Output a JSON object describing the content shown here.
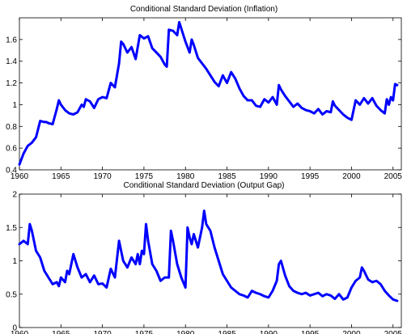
{
  "chart_data": [
    {
      "type": "line",
      "title": "Conditional Standard Deviation (Inflation)",
      "xlabel": "",
      "ylabel": "",
      "xlim": [
        1960,
        2006
      ],
      "ylim": [
        0.4,
        1.8
      ],
      "xticks": [
        1960,
        1965,
        1970,
        1975,
        1980,
        1985,
        1990,
        1995,
        2000,
        2005
      ],
      "yticks": [
        0.4,
        0.6,
        0.8,
        1,
        1.2,
        1.4,
        1.6
      ],
      "ytick_labels": [
        "0.4",
        "0.6",
        "0.8",
        "1",
        "1.2",
        "1.4",
        "1.6"
      ],
      "grid": false,
      "series": [
        {
          "color": "#0000ff",
          "x": [
            1960.0,
            1960.5,
            1961.0,
            1961.5,
            1962.0,
            1962.5,
            1963.0,
            1963.25,
            1963.5,
            1964.0,
            1964.5,
            1964.75,
            1965.0,
            1965.5,
            1966.0,
            1966.5,
            1967.0,
            1967.5,
            1967.75,
            1968.0,
            1968.5,
            1969.0,
            1969.5,
            1970.0,
            1970.5,
            1971.0,
            1971.5,
            1972.0,
            1972.25,
            1972.5,
            1973.0,
            1973.5,
            1974.0,
            1974.5,
            1975.0,
            1975.5,
            1976.0,
            1976.5,
            1977.0,
            1977.5,
            1977.75,
            1978.0,
            1978.5,
            1979.0,
            1979.25,
            1979.5,
            1980.0,
            1980.5,
            1980.75,
            1981.0,
            1981.5,
            1982.0,
            1982.5,
            1983.0,
            1983.5,
            1984.0,
            1984.5,
            1985.0,
            1985.5,
            1986.0,
            1986.5,
            1987.0,
            1987.5,
            1988.0,
            1988.5,
            1989.0,
            1989.5,
            1990.0,
            1990.5,
            1991.0,
            1991.25,
            1991.5,
            1992.0,
            1992.5,
            1993.0,
            1993.5,
            1994.0,
            1994.5,
            1995.0,
            1995.5,
            1996.0,
            1996.5,
            1997.0,
            1997.5,
            1997.75,
            1998.0,
            1998.5,
            1999.0,
            1999.5,
            2000.0,
            2000.5,
            2001.0,
            2001.5,
            2002.0,
            2002.5,
            2003.0,
            2003.5,
            2004.0,
            2004.25,
            2004.5,
            2004.75,
            2005.0,
            2005.25,
            2005.5
          ],
          "values": [
            0.45,
            0.55,
            0.62,
            0.65,
            0.7,
            0.85,
            0.84,
            0.84,
            0.83,
            0.82,
            0.96,
            1.04,
            1.0,
            0.95,
            0.92,
            0.91,
            0.93,
            1.0,
            0.98,
            1.05,
            1.03,
            0.97,
            1.05,
            1.07,
            1.06,
            1.2,
            1.16,
            1.38,
            1.58,
            1.56,
            1.48,
            1.53,
            1.42,
            1.64,
            1.61,
            1.63,
            1.52,
            1.48,
            1.44,
            1.37,
            1.35,
            1.69,
            1.68,
            1.64,
            1.76,
            1.7,
            1.58,
            1.48,
            1.6,
            1.55,
            1.43,
            1.38,
            1.33,
            1.27,
            1.21,
            1.17,
            1.27,
            1.2,
            1.3,
            1.24,
            1.15,
            1.08,
            1.04,
            1.04,
            0.99,
            0.98,
            1.05,
            1.02,
            1.07,
            1.0,
            1.18,
            1.14,
            1.08,
            1.03,
            0.98,
            1.01,
            0.97,
            0.95,
            0.94,
            0.92,
            0.96,
            0.91,
            0.94,
            0.93,
            1.03,
            0.99,
            0.95,
            0.91,
            0.88,
            0.86,
            1.04,
            1.0,
            1.06,
            1.01,
            1.06,
            0.99,
            0.95,
            0.92,
            1.05,
            1.0,
            1.07,
            1.04,
            1.19,
            1.18
          ]
        }
      ]
    },
    {
      "type": "line",
      "title": "Conditional Standard Deviation (Output Gap)",
      "xlabel": "",
      "ylabel": "",
      "xlim": [
        1960,
        2006
      ],
      "ylim": [
        0,
        2
      ],
      "xticks": [
        1960,
        1965,
        1970,
        1975,
        1980,
        1985,
        1990,
        1995,
        2000,
        2005
      ],
      "yticks": [
        0,
        0.5,
        1,
        1.5,
        2
      ],
      "ytick_labels": [
        "0",
        "0.5",
        "1",
        "1.5",
        "2"
      ],
      "grid": false,
      "series": [
        {
          "color": "#0000ff",
          "x": [
            1960.0,
            1960.5,
            1961.0,
            1961.25,
            1961.5,
            1962.0,
            1962.5,
            1963.0,
            1963.5,
            1963.75,
            1964.0,
            1964.5,
            1964.75,
            1965.0,
            1965.5,
            1965.75,
            1966.0,
            1966.5,
            1967.0,
            1967.5,
            1968.0,
            1968.5,
            1969.0,
            1969.5,
            1970.0,
            1970.5,
            1971.0,
            1971.5,
            1972.0,
            1972.5,
            1973.0,
            1973.5,
            1974.0,
            1974.25,
            1974.5,
            1974.75,
            1975.0,
            1975.25,
            1975.5,
            1976.0,
            1976.5,
            1977.0,
            1977.5,
            1978.0,
            1978.25,
            1978.5,
            1979.0,
            1979.5,
            1980.0,
            1980.25,
            1980.5,
            1980.75,
            1981.0,
            1981.5,
            1982.0,
            1982.25,
            1982.5,
            1983.0,
            1983.5,
            1984.0,
            1984.5,
            1985.0,
            1985.5,
            1986.0,
            1986.5,
            1987.0,
            1987.5,
            1988.0,
            1988.5,
            1989.0,
            1989.5,
            1990.0,
            1990.5,
            1991.0,
            1991.25,
            1991.5,
            1992.0,
            1992.5,
            1993.0,
            1993.5,
            1994.0,
            1994.5,
            1995.0,
            1995.5,
            1996.0,
            1996.5,
            1997.0,
            1997.5,
            1998.0,
            1998.5,
            1999.0,
            1999.5,
            2000.0,
            2000.5,
            2001.0,
            2001.25,
            2001.5,
            2002.0,
            2002.5,
            2003.0,
            2003.5,
            2004.0,
            2004.5,
            2005.0,
            2005.5
          ],
          "values": [
            1.25,
            1.3,
            1.25,
            1.55,
            1.45,
            1.15,
            1.05,
            0.85,
            0.75,
            0.7,
            0.65,
            0.68,
            0.62,
            0.75,
            0.68,
            0.85,
            0.8,
            1.1,
            0.9,
            0.75,
            0.8,
            0.68,
            0.78,
            0.65,
            0.66,
            0.6,
            0.88,
            0.75,
            1.3,
            1.0,
            0.9,
            1.05,
            0.95,
            1.1,
            0.95,
            1.15,
            1.1,
            1.55,
            1.3,
            0.95,
            0.85,
            0.7,
            0.75,
            0.75,
            1.45,
            1.3,
            0.95,
            0.75,
            0.6,
            1.5,
            1.35,
            1.25,
            1.4,
            1.2,
            1.5,
            1.75,
            1.55,
            1.45,
            1.2,
            1.0,
            0.8,
            0.7,
            0.6,
            0.55,
            0.5,
            0.48,
            0.45,
            0.55,
            0.52,
            0.5,
            0.47,
            0.45,
            0.55,
            0.7,
            0.95,
            1.0,
            0.78,
            0.62,
            0.55,
            0.52,
            0.5,
            0.52,
            0.48,
            0.5,
            0.52,
            0.47,
            0.5,
            0.48,
            0.43,
            0.5,
            0.42,
            0.45,
            0.6,
            0.7,
            0.75,
            0.9,
            0.85,
            0.72,
            0.68,
            0.7,
            0.65,
            0.55,
            0.48,
            0.42,
            0.4
          ]
        }
      ]
    }
  ]
}
